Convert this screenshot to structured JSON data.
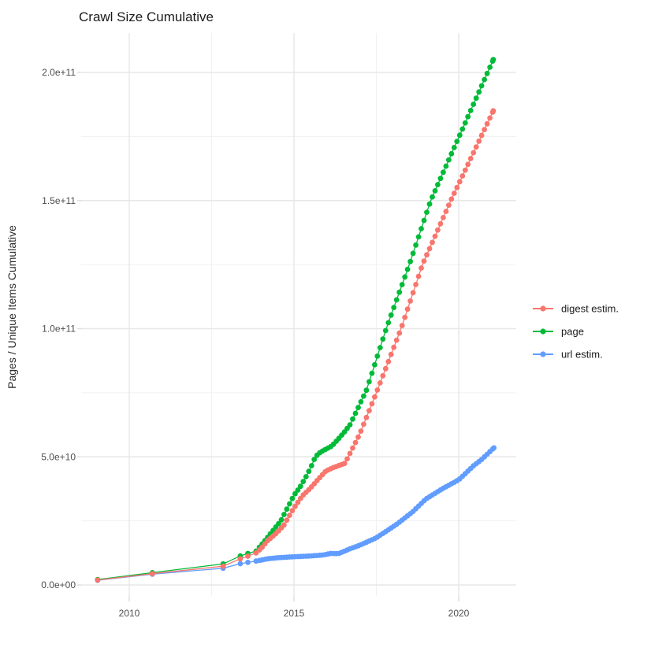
{
  "chart_data": {
    "type": "scatter",
    "title": "Crawl Size Cumulative",
    "xlabel": "",
    "ylabel": "Pages / Unique Items Cumulative",
    "value_unit": "billions (1e9) of pages / unique items",
    "x_axis": {
      "ticks": [
        {
          "value": 2010,
          "label": "2010"
        },
        {
          "value": 2015,
          "label": "2015"
        },
        {
          "value": 2020,
          "label": "2020"
        }
      ],
      "minor": [
        2012.5,
        2017.5
      ],
      "range": [
        2008.54,
        2021.75
      ]
    },
    "y_axis": {
      "ticks": [
        {
          "value_billions": 0,
          "label": "0.0e+00"
        },
        {
          "value_billions": 50,
          "label": "5.0e+10"
        },
        {
          "value_billions": 100,
          "label": "1.0e+11"
        },
        {
          "value_billions": 150,
          "label": "1.5e+11"
        },
        {
          "value_billions": 200,
          "label": "2.0e+11"
        }
      ],
      "minor": [
        25,
        75,
        125,
        175
      ],
      "range_billions": [
        -4.6,
        215.4
      ]
    },
    "grid": "major and minor, light gray on white panel",
    "legend": {
      "position": "right",
      "entries": [
        {
          "label": "digest estim.",
          "color": "#F8766D"
        },
        {
          "label": "page",
          "color": "#00BA38"
        },
        {
          "label": "url estim.",
          "color": "#619CFF"
        }
      ]
    },
    "series": [
      {
        "name": "digest estim.",
        "color": "#F8766D",
        "anchors_year_billions": [
          [
            2009.04,
            1.9
          ],
          [
            2010.7,
            4.4
          ],
          [
            2012.85,
            7.3
          ],
          [
            2013.37,
            10.2
          ],
          [
            2013.6,
            11.2
          ],
          [
            2013.85,
            12.5
          ],
          [
            2014.0,
            14.2
          ],
          [
            2014.2,
            17.3
          ],
          [
            2014.45,
            20.0
          ],
          [
            2014.7,
            23.4
          ],
          [
            2014.93,
            28.6
          ],
          [
            2015.05,
            31.0
          ],
          [
            2015.25,
            34.7
          ],
          [
            2015.5,
            37.8
          ],
          [
            2015.72,
            41.0
          ],
          [
            2015.97,
            44.5
          ],
          [
            2016.2,
            45.8
          ],
          [
            2016.55,
            47.5
          ],
          [
            2017.0,
            59.0
          ],
          [
            2017.5,
            75.0
          ],
          [
            2018.25,
            100.0
          ],
          [
            2018.9,
            125.0
          ],
          [
            2019.76,
            150.0
          ],
          [
            2021.05,
            185.0
          ]
        ],
        "early_point_years": [
          2009.04,
          2010.7,
          2012.85,
          2013.37,
          2013.6,
          2013.85
        ],
        "dense_points": {
          "start": 2013.95,
          "end": 2021.05,
          "step": 0.0833
        }
      },
      {
        "name": "page",
        "color": "#00BA38",
        "anchors_year_billions": [
          [
            2009.04,
            2.1
          ],
          [
            2010.7,
            4.8
          ],
          [
            2012.85,
            8.2
          ],
          [
            2013.37,
            11.3
          ],
          [
            2013.6,
            12.3
          ],
          [
            2013.85,
            13.2
          ],
          [
            2014.1,
            17.0
          ],
          [
            2014.35,
            21.0
          ],
          [
            2014.6,
            25.0
          ],
          [
            2014.8,
            30.0
          ],
          [
            2015.0,
            35.0
          ],
          [
            2015.2,
            38.5
          ],
          [
            2015.4,
            43.0
          ],
          [
            2015.55,
            47.0
          ],
          [
            2015.65,
            50.0
          ],
          [
            2015.8,
            51.8
          ],
          [
            2016.0,
            53.2
          ],
          [
            2016.15,
            54.2
          ],
          [
            2016.35,
            57.0
          ],
          [
            2016.55,
            60.0
          ],
          [
            2016.7,
            62.5
          ],
          [
            2017.2,
            76.0
          ],
          [
            2017.8,
            100.0
          ],
          [
            2018.5,
            125.0
          ],
          [
            2019.15,
            150.0
          ],
          [
            2021.05,
            205.0
          ]
        ],
        "early_point_years": [
          2009.04,
          2010.7,
          2012.85,
          2013.37,
          2013.6,
          2013.85
        ],
        "dense_points": {
          "start": 2013.95,
          "end": 2021.05,
          "step": 0.0833
        }
      },
      {
        "name": "url estim.",
        "color": "#619CFF",
        "anchors_year_billions": [
          [
            2009.04,
            1.8
          ],
          [
            2010.7,
            4.2
          ],
          [
            2012.85,
            6.5
          ],
          [
            2013.37,
            8.3
          ],
          [
            2013.6,
            8.8
          ],
          [
            2013.85,
            9.3
          ],
          [
            2014.2,
            10.2
          ],
          [
            2014.5,
            10.6
          ],
          [
            2015.0,
            11.0
          ],
          [
            2015.5,
            11.3
          ],
          [
            2015.9,
            11.7
          ],
          [
            2016.12,
            12.3
          ],
          [
            2016.35,
            12.2
          ],
          [
            2016.7,
            14.1
          ],
          [
            2017.0,
            15.5
          ],
          [
            2017.5,
            18.4
          ],
          [
            2018.1,
            23.5
          ],
          [
            2018.6,
            28.5
          ],
          [
            2019.0,
            33.5
          ],
          [
            2019.5,
            37.5
          ],
          [
            2020.0,
            41.0
          ],
          [
            2020.45,
            46.5
          ],
          [
            2020.7,
            49.0
          ],
          [
            2021.07,
            53.5
          ]
        ],
        "early_point_years": [
          2009.04,
          2010.7,
          2012.85,
          2013.37,
          2013.6,
          2013.85
        ],
        "dense_points": {
          "start": 2013.95,
          "end": 2021.07,
          "step": 0.0833
        }
      }
    ]
  }
}
